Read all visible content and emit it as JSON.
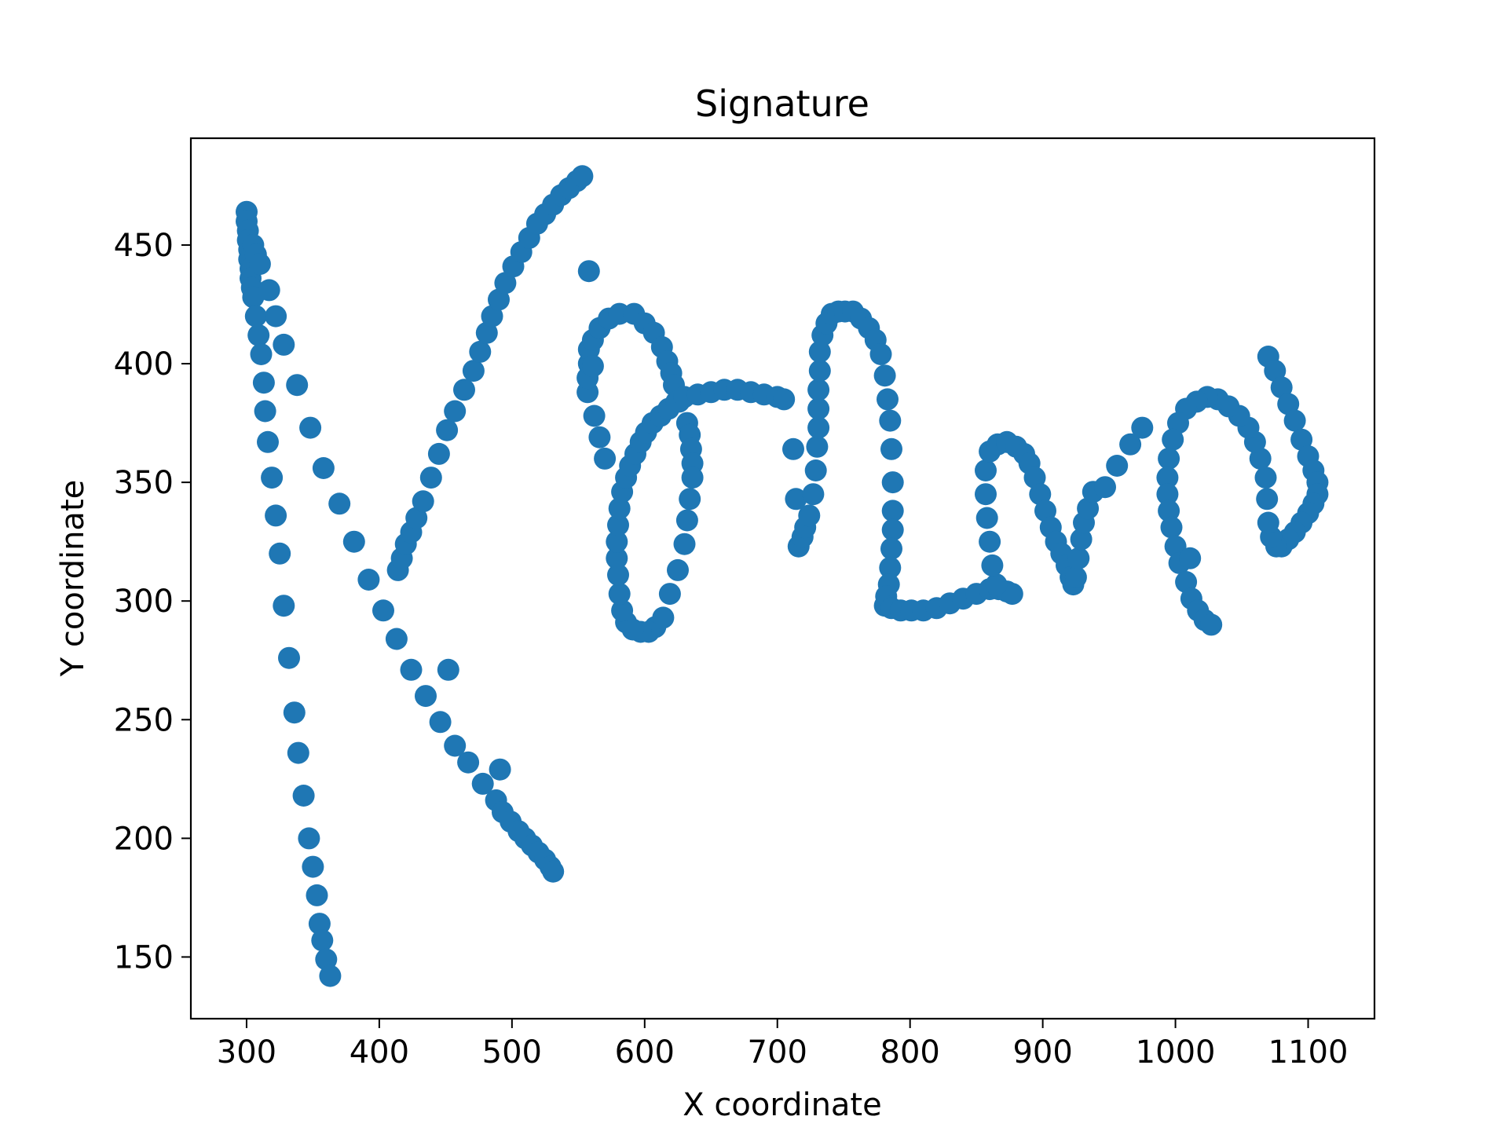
{
  "chart_data": {
    "type": "scatter",
    "title": "Signature",
    "xlabel": "X coordinate",
    "ylabel": "Y coordinate",
    "xlim": [
      258,
      1150
    ],
    "ylim": [
      124,
      495
    ],
    "xticks": [
      300,
      400,
      500,
      600,
      700,
      800,
      900,
      1000,
      1100
    ],
    "yticks": [
      150,
      200,
      250,
      300,
      350,
      400,
      450
    ],
    "grid": false,
    "legend": "none",
    "marker_color": "#1f77b4",
    "series": [
      {
        "points": [
          [
            300,
            464
          ],
          [
            300,
            460
          ],
          [
            301,
            456
          ],
          [
            301,
            452
          ],
          [
            302,
            448
          ],
          [
            302,
            444
          ],
          [
            303,
            440
          ],
          [
            303,
            436
          ],
          [
            304,
            432
          ],
          [
            305,
            428
          ],
          [
            307,
            420
          ],
          [
            309,
            412
          ],
          [
            311,
            404
          ],
          [
            313,
            392
          ],
          [
            314,
            380
          ],
          [
            316,
            367
          ],
          [
            319,
            352
          ],
          [
            322,
            336
          ],
          [
            325,
            320
          ],
          [
            328,
            298
          ],
          [
            332,
            276
          ],
          [
            336,
            253
          ],
          [
            339,
            236
          ],
          [
            343,
            218
          ],
          [
            347,
            200
          ],
          [
            350,
            188
          ],
          [
            353,
            176
          ],
          [
            355,
            164
          ],
          [
            357,
            157
          ],
          [
            360,
            149
          ],
          [
            363,
            142
          ],
          [
            305,
            450
          ],
          [
            307,
            446
          ],
          [
            310,
            442
          ],
          [
            317,
            431
          ],
          [
            322,
            420
          ],
          [
            328,
            408
          ],
          [
            338,
            391
          ],
          [
            348,
            373
          ],
          [
            358,
            356
          ],
          [
            370,
            341
          ],
          [
            381,
            325
          ],
          [
            392,
            309
          ],
          [
            403,
            296
          ],
          [
            413,
            284
          ],
          [
            424,
            271
          ],
          [
            435,
            260
          ],
          [
            446,
            249
          ],
          [
            457,
            239
          ],
          [
            467,
            232
          ],
          [
            478,
            223
          ],
          [
            488,
            216
          ],
          [
            493,
            211
          ],
          [
            499,
            207
          ],
          [
            505,
            203
          ],
          [
            510,
            200
          ],
          [
            515,
            197
          ],
          [
            520,
            194
          ],
          [
            525,
            191
          ],
          [
            529,
            188
          ],
          [
            531,
            186
          ],
          [
            452,
            271
          ],
          [
            491,
            229
          ],
          [
            414,
            313
          ],
          [
            417,
            318
          ],
          [
            420,
            324
          ],
          [
            424,
            329
          ],
          [
            428,
            335
          ],
          [
            433,
            342
          ],
          [
            439,
            352
          ],
          [
            445,
            362
          ],
          [
            451,
            372
          ],
          [
            457,
            380
          ],
          [
            464,
            389
          ],
          [
            471,
            397
          ],
          [
            476,
            405
          ],
          [
            481,
            413
          ],
          [
            485,
            420
          ],
          [
            490,
            427
          ],
          [
            495,
            434
          ],
          [
            501,
            441
          ],
          [
            507,
            447
          ],
          [
            513,
            453
          ],
          [
            519,
            459
          ],
          [
            525,
            463
          ],
          [
            531,
            467
          ],
          [
            537,
            471
          ],
          [
            543,
            474
          ],
          [
            549,
            477
          ],
          [
            553,
            479
          ],
          [
            558,
            439
          ],
          [
            557,
            388
          ],
          [
            557,
            394
          ],
          [
            558,
            400
          ],
          [
            558,
            406
          ],
          [
            561,
            410
          ],
          [
            566,
            415
          ],
          [
            573,
            419
          ],
          [
            581,
            421
          ],
          [
            592,
            421
          ],
          [
            600,
            417
          ],
          [
            607,
            413
          ],
          [
            613,
            407
          ],
          [
            617,
            401
          ],
          [
            620,
            396
          ],
          [
            622,
            391
          ],
          [
            626,
            384
          ],
          [
            632,
            375
          ],
          [
            634,
            370
          ],
          [
            635,
            364
          ],
          [
            636,
            358
          ],
          [
            636,
            352
          ],
          [
            634,
            343
          ],
          [
            632,
            334
          ],
          [
            630,
            324
          ],
          [
            625,
            313
          ],
          [
            619,
            303
          ],
          [
            614,
            293
          ],
          [
            608,
            289
          ],
          [
            603,
            287
          ],
          [
            597,
            287
          ],
          [
            591,
            288
          ],
          [
            586,
            291
          ],
          [
            583,
            296
          ],
          [
            581,
            303
          ],
          [
            580,
            311
          ],
          [
            579,
            318
          ],
          [
            579,
            325
          ],
          [
            580,
            332
          ],
          [
            581,
            339
          ],
          [
            583,
            346
          ],
          [
            586,
            352
          ],
          [
            589,
            357
          ],
          [
            593,
            362
          ],
          [
            597,
            367
          ],
          [
            601,
            371
          ],
          [
            606,
            375
          ],
          [
            612,
            378
          ],
          [
            618,
            381
          ],
          [
            624,
            384
          ],
          [
            630,
            386
          ],
          [
            640,
            387
          ],
          [
            650,
            388
          ],
          [
            660,
            389
          ],
          [
            670,
            389
          ],
          [
            680,
            388
          ],
          [
            690,
            387
          ],
          [
            700,
            386
          ],
          [
            705,
            385
          ],
          [
            562,
            378
          ],
          [
            566,
            369
          ],
          [
            570,
            360
          ],
          [
            561,
            399
          ],
          [
            712,
            364
          ],
          [
            714,
            343
          ],
          [
            716,
            323
          ],
          [
            719,
            327
          ],
          [
            721,
            331
          ],
          [
            724,
            336
          ],
          [
            727,
            345
          ],
          [
            729,
            355
          ],
          [
            730,
            365
          ],
          [
            731,
            373
          ],
          [
            731,
            381
          ],
          [
            731,
            389
          ],
          [
            732,
            397
          ],
          [
            732,
            405
          ],
          [
            734,
            412
          ],
          [
            737,
            417
          ],
          [
            741,
            421
          ],
          [
            746,
            422
          ],
          [
            751,
            422
          ],
          [
            757,
            422
          ],
          [
            763,
            419
          ],
          [
            769,
            415
          ],
          [
            774,
            410
          ],
          [
            778,
            404
          ],
          [
            781,
            395
          ],
          [
            783,
            385
          ],
          [
            785,
            376
          ],
          [
            786,
            364
          ],
          [
            787,
            350
          ],
          [
            787,
            338
          ],
          [
            787,
            330
          ],
          [
            786,
            322
          ],
          [
            785,
            314
          ],
          [
            784,
            307
          ],
          [
            782,
            302
          ],
          [
            781,
            298
          ],
          [
            786,
            297
          ],
          [
            793,
            296
          ],
          [
            801,
            296
          ],
          [
            810,
            296
          ],
          [
            820,
            297
          ],
          [
            830,
            299
          ],
          [
            840,
            301
          ],
          [
            850,
            303
          ],
          [
            860,
            305
          ],
          [
            867,
            305
          ],
          [
            873,
            304
          ],
          [
            877,
            303
          ],
          [
            865,
            307
          ],
          [
            862,
            315
          ],
          [
            860,
            325
          ],
          [
            858,
            335
          ],
          [
            857,
            345
          ],
          [
            857,
            355
          ],
          [
            860,
            363
          ],
          [
            866,
            366
          ],
          [
            873,
            367
          ],
          [
            880,
            365
          ],
          [
            886,
            362
          ],
          [
            890,
            358
          ],
          [
            894,
            352
          ],
          [
            898,
            345
          ],
          [
            902,
            338
          ],
          [
            906,
            331
          ],
          [
            910,
            325
          ],
          [
            914,
            320
          ],
          [
            918,
            315
          ],
          [
            921,
            310
          ],
          [
            923,
            307
          ],
          [
            925,
            310
          ],
          [
            927,
            318
          ],
          [
            929,
            326
          ],
          [
            931,
            333
          ],
          [
            934,
            339
          ],
          [
            938,
            346
          ],
          [
            947,
            348
          ],
          [
            956,
            357
          ],
          [
            966,
            366
          ],
          [
            975,
            373
          ],
          [
            1070,
            403
          ],
          [
            1075,
            397
          ],
          [
            1080,
            390
          ],
          [
            1085,
            383
          ],
          [
            1090,
            376
          ],
          [
            1095,
            368
          ],
          [
            1100,
            361
          ],
          [
            1104,
            355
          ],
          [
            1107,
            350
          ],
          [
            1107,
            345
          ],
          [
            1104,
            341
          ],
          [
            1100,
            337
          ],
          [
            1095,
            333
          ],
          [
            1090,
            329
          ],
          [
            1085,
            326
          ],
          [
            1080,
            323
          ],
          [
            1076,
            323
          ],
          [
            1072,
            327
          ],
          [
            1070,
            333
          ],
          [
            1069,
            343
          ],
          [
            1068,
            352
          ],
          [
            1064,
            360
          ],
          [
            1060,
            367
          ],
          [
            1055,
            373
          ],
          [
            1048,
            378
          ],
          [
            1040,
            382
          ],
          [
            1032,
            385
          ],
          [
            1024,
            386
          ],
          [
            1016,
            384
          ],
          [
            1008,
            381
          ],
          [
            1002,
            375
          ],
          [
            998,
            368
          ],
          [
            995,
            360
          ],
          [
            994,
            352
          ],
          [
            994,
            345
          ],
          [
            995,
            338
          ],
          [
            997,
            331
          ],
          [
            1000,
            323
          ],
          [
            1003,
            316
          ],
          [
            1008,
            308
          ],
          [
            1012,
            301
          ],
          [
            1017,
            296
          ],
          [
            1022,
            292
          ],
          [
            1027,
            290
          ],
          [
            1011,
            318
          ]
        ]
      }
    ]
  }
}
